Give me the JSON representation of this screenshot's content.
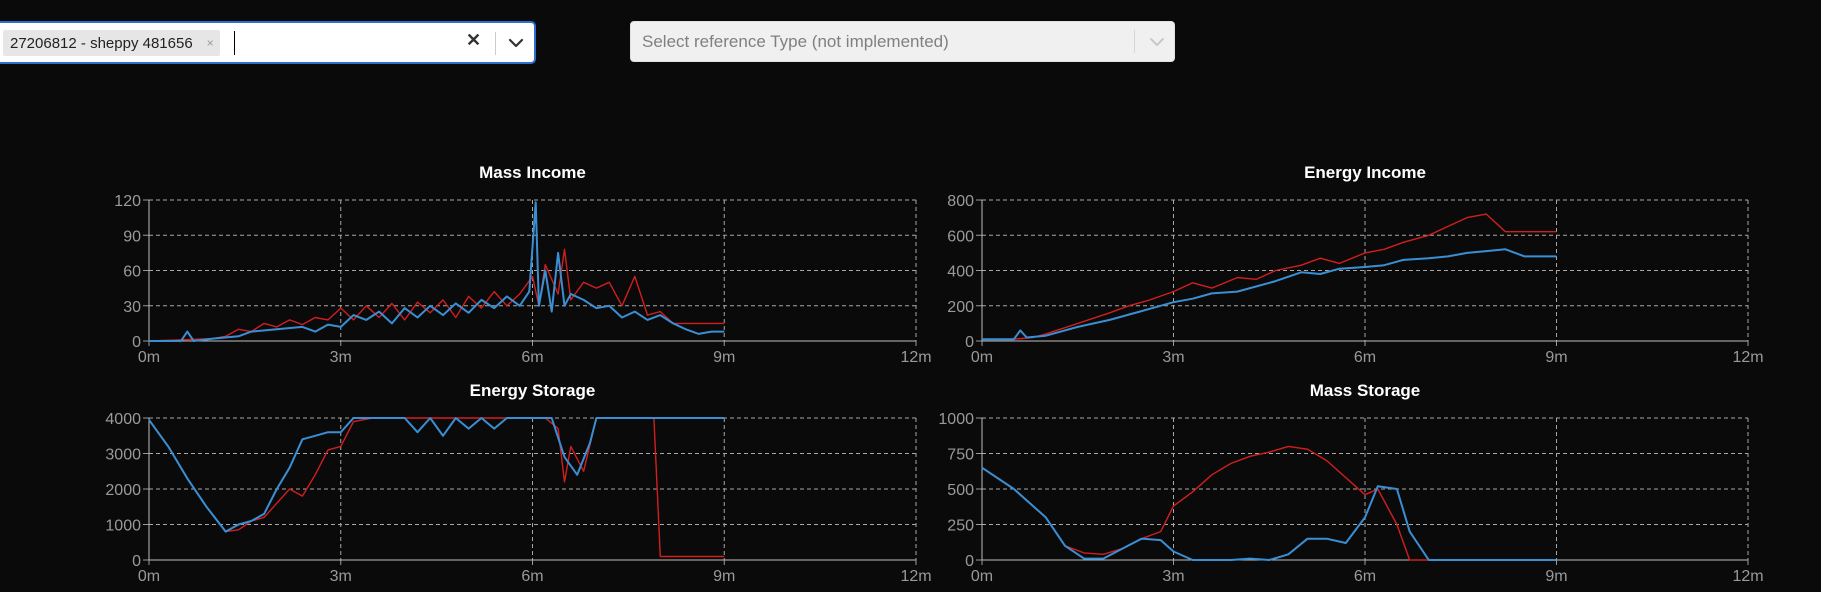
{
  "player_select": {
    "chip_label": "27206812 - sheppy 481656",
    "chip_remove": "×",
    "clear": "✕"
  },
  "reference_select": {
    "placeholder": "Select reference Type (not implemented)"
  },
  "colors": {
    "red": "#d11f1f",
    "blue": "#3a8fd4",
    "grid": "#a8a8a8"
  },
  "icons": [
    "chevron-down-icon",
    "close-icon"
  ],
  "chart_data": [
    {
      "type": "line",
      "title": "Mass Income",
      "xlabel": "",
      "ylabel": "",
      "xticks": [
        "0m",
        "3m",
        "6m",
        "9m",
        "12m"
      ],
      "xlim": [
        0,
        12
      ],
      "yticks": [
        0,
        30,
        60,
        90,
        120
      ],
      "ylim": [
        0,
        120
      ],
      "grid": true,
      "series": [
        {
          "color": "#d11f1f",
          "x": [
            0,
            0.5,
            1,
            1.2,
            1.4,
            1.6,
            1.8,
            2,
            2.2,
            2.4,
            2.6,
            2.8,
            3,
            3.2,
            3.4,
            3.6,
            3.8,
            4,
            4.2,
            4.4,
            4.6,
            4.8,
            5,
            5.2,
            5.4,
            5.6,
            5.8,
            6,
            6.1,
            6.2,
            6.4,
            6.5,
            6.6,
            6.8,
            7,
            7.2,
            7.4,
            7.6,
            7.8,
            8,
            8.2,
            8.4,
            9
          ],
          "y": [
            0,
            1,
            2,
            4,
            10,
            8,
            15,
            12,
            18,
            14,
            20,
            18,
            28,
            18,
            30,
            20,
            32,
            18,
            33,
            24,
            35,
            20,
            38,
            28,
            42,
            30,
            40,
            55,
            30,
            65,
            40,
            78,
            35,
            50,
            45,
            50,
            30,
            55,
            22,
            25,
            15,
            15,
            15
          ]
        },
        {
          "color": "#3a8fd4",
          "x": [
            0,
            0.5,
            0.6,
            0.7,
            1,
            1.4,
            1.6,
            2,
            2.4,
            2.6,
            2.8,
            3,
            3.2,
            3.4,
            3.6,
            3.8,
            4,
            4.2,
            4.4,
            4.6,
            4.8,
            5,
            5.2,
            5.4,
            5.6,
            5.8,
            5.95,
            6.05,
            6.1,
            6.2,
            6.3,
            6.4,
            6.5,
            6.6,
            6.8,
            7,
            7.2,
            7.4,
            7.6,
            7.8,
            8,
            8.2,
            8.4,
            8.6,
            8.8,
            9
          ],
          "y": [
            0,
            0,
            8,
            0,
            2,
            4,
            8,
            10,
            12,
            8,
            14,
            12,
            22,
            18,
            25,
            15,
            28,
            20,
            30,
            22,
            32,
            24,
            35,
            28,
            38,
            30,
            42,
            118,
            30,
            60,
            25,
            75,
            30,
            40,
            35,
            28,
            30,
            20,
            25,
            18,
            22,
            15,
            10,
            6,
            8,
            8
          ]
        }
      ]
    },
    {
      "type": "line",
      "title": "Energy Income",
      "xlabel": "",
      "ylabel": "",
      "xticks": [
        "0m",
        "3m",
        "6m",
        "9m",
        "12m"
      ],
      "xlim": [
        0,
        12
      ],
      "yticks": [
        0,
        200,
        400,
        600,
        800
      ],
      "ylim": [
        0,
        800
      ],
      "grid": true,
      "series": [
        {
          "color": "#d11f1f",
          "x": [
            0,
            0.5,
            0.8,
            1,
            1.5,
            2,
            2.3,
            2.6,
            3,
            3.3,
            3.6,
            4,
            4.3,
            4.6,
            5,
            5.3,
            5.6,
            6,
            6.3,
            6.6,
            7,
            7.3,
            7.6,
            7.9,
            8.2,
            8.4,
            9
          ],
          "y": [
            10,
            10,
            20,
            40,
            100,
            160,
            200,
            230,
            280,
            330,
            300,
            360,
            350,
            400,
            430,
            470,
            440,
            500,
            520,
            560,
            600,
            650,
            700,
            720,
            620,
            620,
            620
          ]
        },
        {
          "color": "#3a8fd4",
          "x": [
            0,
            0.5,
            0.6,
            0.7,
            1,
            1.5,
            2,
            2.3,
            2.6,
            3,
            3.3,
            3.6,
            4,
            4.3,
            4.6,
            5,
            5.3,
            5.6,
            6,
            6.3,
            6.6,
            7,
            7.3,
            7.6,
            7.9,
            8.2,
            8.5,
            8.8,
            9
          ],
          "y": [
            10,
            10,
            60,
            20,
            30,
            80,
            120,
            150,
            180,
            220,
            240,
            270,
            280,
            310,
            340,
            390,
            380,
            410,
            420,
            430,
            460,
            470,
            480,
            500,
            510,
            520,
            480,
            480,
            480
          ]
        }
      ]
    },
    {
      "type": "line",
      "title": "Energy Storage",
      "xlabel": "",
      "ylabel": "",
      "xticks": [
        "0m",
        "3m",
        "6m",
        "9m",
        "12m"
      ],
      "xlim": [
        0,
        12
      ],
      "yticks": [
        0,
        1000,
        2000,
        3000,
        4000
      ],
      "ylim": [
        0,
        4000
      ],
      "grid": true,
      "series": [
        {
          "color": "#d11f1f",
          "x": [
            0,
            0.3,
            0.6,
            0.9,
            1.2,
            1.4,
            1.6,
            1.8,
            2,
            2.2,
            2.4,
            2.6,
            2.8,
            3,
            3.2,
            3.5,
            4,
            5,
            6,
            6.2,
            6.4,
            6.5,
            6.6,
            6.8,
            7,
            7.2,
            7.4,
            7.6,
            7.8,
            7.9,
            8,
            9
          ],
          "y": [
            3950,
            3200,
            2300,
            1500,
            800,
            850,
            1100,
            1200,
            1600,
            2000,
            1800,
            2400,
            3100,
            3200,
            3900,
            4000,
            4000,
            4000,
            4000,
            4000,
            3700,
            2200,
            3200,
            2500,
            4000,
            4000,
            4000,
            4000,
            4000,
            4000,
            100,
            100
          ]
        },
        {
          "color": "#3a8fd4",
          "x": [
            0,
            0.3,
            0.6,
            0.9,
            1.2,
            1.4,
            1.6,
            1.8,
            2,
            2.2,
            2.4,
            2.6,
            2.8,
            3,
            3.2,
            3.5,
            4,
            4.2,
            4.4,
            4.6,
            4.8,
            5,
            5.2,
            5.4,
            5.6,
            6,
            6.3,
            6.5,
            6.7,
            6.9,
            7,
            7.5,
            8,
            9
          ],
          "y": [
            3950,
            3200,
            2300,
            1500,
            800,
            1000,
            1100,
            1300,
            2000,
            2600,
            3400,
            3500,
            3600,
            3600,
            4000,
            4000,
            4000,
            3600,
            4000,
            3500,
            4000,
            3700,
            4000,
            3700,
            4000,
            4000,
            4000,
            2900,
            2400,
            3300,
            4000,
            4000,
            4000,
            4000
          ]
        }
      ]
    },
    {
      "type": "line",
      "title": "Mass Storage",
      "xlabel": "",
      "ylabel": "",
      "xticks": [
        "0m",
        "3m",
        "6m",
        "9m",
        "12m"
      ],
      "xlim": [
        0,
        12
      ],
      "yticks": [
        0,
        250,
        500,
        750,
        1000
      ],
      "ylim": [
        0,
        1000
      ],
      "grid": true,
      "series": [
        {
          "color": "#d11f1f",
          "x": [
            0,
            0.5,
            1,
            1.3,
            1.6,
            1.9,
            2.2,
            2.5,
            2.8,
            3,
            3.3,
            3.6,
            3.9,
            4.2,
            4.5,
            4.8,
            5.1,
            5.4,
            5.7,
            6,
            6.2,
            6.5,
            6.7,
            7,
            9
          ],
          "y": [
            650,
            500,
            300,
            100,
            50,
            40,
            80,
            150,
            200,
            380,
            480,
            600,
            680,
            730,
            760,
            800,
            780,
            700,
            580,
            460,
            500,
            250,
            0,
            0,
            0
          ]
        },
        {
          "color": "#3a8fd4",
          "x": [
            0,
            0.5,
            1,
            1.3,
            1.6,
            1.9,
            2.2,
            2.5,
            2.8,
            3,
            3.3,
            3.6,
            3.9,
            4.2,
            4.5,
            4.8,
            5.1,
            5.4,
            5.7,
            6,
            6.2,
            6.5,
            6.7,
            7,
            9
          ],
          "y": [
            650,
            500,
            300,
            100,
            10,
            10,
            80,
            150,
            140,
            60,
            0,
            0,
            0,
            10,
            0,
            40,
            150,
            150,
            120,
            300,
            520,
            500,
            200,
            0,
            0
          ]
        }
      ]
    }
  ]
}
